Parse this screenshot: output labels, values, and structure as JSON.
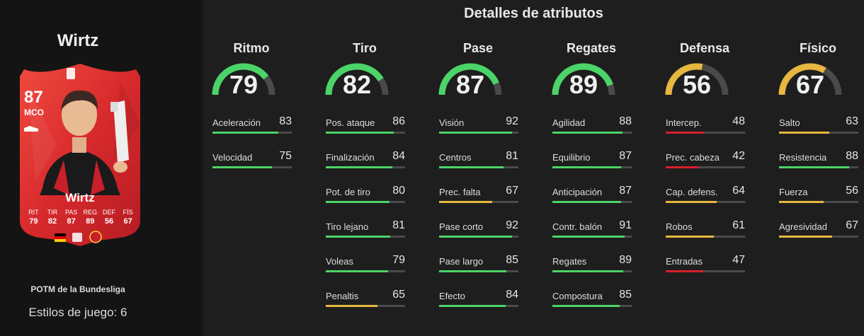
{
  "player": {
    "name": "Wirtz",
    "rating": "87",
    "position": "MCO",
    "card_surname": "Wirtz",
    "card_stats": [
      {
        "abbr": "RIT",
        "value": "79"
      },
      {
        "abbr": "TIR",
        "value": "82"
      },
      {
        "abbr": "PAS",
        "value": "87"
      },
      {
        "abbr": "REG",
        "value": "89"
      },
      {
        "abbr": "DEF",
        "value": "56"
      },
      {
        "abbr": "FÍS",
        "value": "67"
      }
    ],
    "promo": "POTM de la Bundesliga",
    "playstyles": "Estilos de juego: 6"
  },
  "colors": {
    "green": "#4bd467",
    "yellow": "#e7b73f",
    "red": "#d6202b",
    "card_red": "#d72a2d",
    "track": "#4a4a4a"
  },
  "section_title": "Detalles de atributos",
  "categories": [
    {
      "title": "Ritmo",
      "value": "79",
      "stats": [
        {
          "name": "Aceleración",
          "value": "83"
        },
        {
          "name": "Velocidad",
          "value": "75"
        }
      ]
    },
    {
      "title": "Tiro",
      "value": "82",
      "stats": [
        {
          "name": "Pos. ataque",
          "value": "86"
        },
        {
          "name": "Finalización",
          "value": "84"
        },
        {
          "name": "Pot. de tiro",
          "value": "80"
        },
        {
          "name": "Tiro lejano",
          "value": "81"
        },
        {
          "name": "Voleas",
          "value": "79"
        },
        {
          "name": "Penaltis",
          "value": "65"
        }
      ]
    },
    {
      "title": "Pase",
      "value": "87",
      "stats": [
        {
          "name": "Visión",
          "value": "92"
        },
        {
          "name": "Centros",
          "value": "81"
        },
        {
          "name": "Prec. falta",
          "value": "67"
        },
        {
          "name": "Pase corto",
          "value": "92"
        },
        {
          "name": "Pase largo",
          "value": "85"
        },
        {
          "name": "Efecto",
          "value": "84"
        }
      ]
    },
    {
      "title": "Regates",
      "value": "89",
      "stats": [
        {
          "name": "Agilidad",
          "value": "88"
        },
        {
          "name": "Equilibrio",
          "value": "87"
        },
        {
          "name": "Anticipación",
          "value": "87"
        },
        {
          "name": "Contr. balón",
          "value": "91"
        },
        {
          "name": "Regates",
          "value": "89"
        },
        {
          "name": "Compostura",
          "value": "85"
        }
      ]
    },
    {
      "title": "Defensa",
      "value": "56",
      "stats": [
        {
          "name": "Intercep.",
          "value": "48"
        },
        {
          "name": "Prec. cabeza",
          "value": "42"
        },
        {
          "name": "Cap. defens.",
          "value": "64"
        },
        {
          "name": "Robos",
          "value": "61"
        },
        {
          "name": "Entradas",
          "value": "47"
        }
      ]
    },
    {
      "title": "Físico",
      "value": "67",
      "stats": [
        {
          "name": "Salto",
          "value": "63"
        },
        {
          "name": "Resistencia",
          "value": "88"
        },
        {
          "name": "Fuerza",
          "value": "56"
        },
        {
          "name": "Agresividad",
          "value": "67"
        }
      ]
    }
  ]
}
